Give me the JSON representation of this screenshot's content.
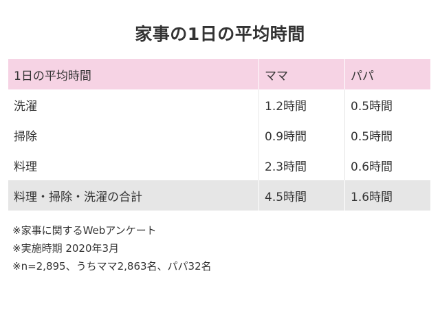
{
  "title": "家事の1日の平均時間",
  "table": {
    "headers": [
      "1日の平均時間",
      "ママ",
      "パパ"
    ],
    "rows": [
      {
        "label": "洗濯",
        "mama": "1.2時間",
        "papa": "0.5時間"
      },
      {
        "label": "掃除",
        "mama": "0.9時間",
        "papa": "0.5時間"
      },
      {
        "label": "料理",
        "mama": "2.3時間",
        "papa": "0.6時間"
      }
    ],
    "total": {
      "label": "料理・掃除・洗濯の合計",
      "mama": "4.5時間",
      "papa": "1.6時間"
    }
  },
  "notes": [
    "※家事に関するWebアンケート",
    "※実施時期 2020年3月",
    "※n=2,895、うちママ2,863名、パパ32名"
  ],
  "colors": {
    "header_bg": "#f6d3e4",
    "total_bg": "#e6e6e6",
    "text": "#333333"
  }
}
